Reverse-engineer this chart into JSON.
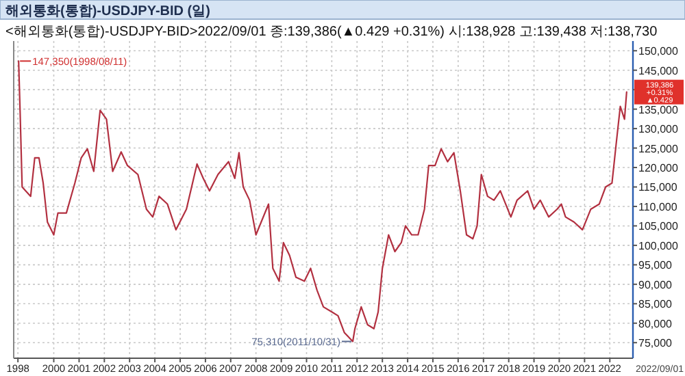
{
  "chart_data": {
    "type": "line",
    "title": "해외통화(통합)-USDJPY-BID (일)",
    "subtitle": "<해외통화(통합)-USDJPY-BID>2022/09/01 종:139,386(▲0.429 +0.31%) 시:138,928 고:139,438 저:138,730",
    "x": [
      "1998-08-11",
      "1998-09",
      "1998-10",
      "1999-02",
      "1999-04",
      "1999-06",
      "1999-08",
      "1999-10",
      "2000-01",
      "2000-03",
      "2000-07",
      "2000-11",
      "2001-02",
      "2001-05",
      "2001-08",
      "2001-11",
      "2002-02",
      "2002-05",
      "2002-09",
      "2002-12",
      "2003-05",
      "2003-09",
      "2003-12",
      "2004-03",
      "2004-07",
      "2004-11",
      "2005-04",
      "2005-09",
      "2005-12",
      "2006-03",
      "2006-07",
      "2006-12",
      "2007-03",
      "2007-05",
      "2007-07",
      "2007-10",
      "2008-01",
      "2008-07",
      "2008-09",
      "2008-12",
      "2009-02",
      "2009-05",
      "2009-08",
      "2009-12",
      "2010-03",
      "2010-06",
      "2010-09",
      "2011-01",
      "2011-04",
      "2011-07",
      "2011-10-31",
      "2011-12",
      "2012-03",
      "2012-06",
      "2012-09",
      "2012-11",
      "2013-01",
      "2013-04",
      "2013-07",
      "2013-10",
      "2013-12",
      "2014-03",
      "2014-06",
      "2014-09",
      "2014-11",
      "2015-02",
      "2015-05",
      "2015-08",
      "2015-11",
      "2016-02",
      "2016-05",
      "2016-08",
      "2016-10",
      "2016-12",
      "2017-03",
      "2017-06",
      "2017-09",
      "2018-02",
      "2018-05",
      "2018-10",
      "2019-01",
      "2019-04",
      "2019-08",
      "2019-12",
      "2020-02",
      "2020-04",
      "2020-08",
      "2020-12",
      "2021-04",
      "2021-08",
      "2021-11",
      "2022-02",
      "2022-04",
      "2022-06",
      "2022-08",
      "2022-09-01"
    ],
    "series": [
      {
        "color": "#b23040",
        "values": [
          147350,
          134700,
          115000,
          112600,
          122500,
          122500,
          116000,
          106000,
          102700,
          108300,
          108300,
          116000,
          122500,
          124800,
          119000,
          134700,
          132400,
          119000,
          124000,
          120500,
          118200,
          109300,
          107300,
          112600,
          110600,
          104000,
          109300,
          120900,
          117200,
          114000,
          118200,
          121500,
          117200,
          123800,
          115000,
          111600,
          102700,
          110600,
          94100,
          90800,
          100700,
          97400,
          91800,
          90800,
          94100,
          88500,
          84200,
          82900,
          81900,
          77600,
          75310,
          78600,
          84200,
          79600,
          78600,
          82900,
          94100,
          102700,
          98400,
          100700,
          105000,
          102700,
          102700,
          109300,
          120500,
          120500,
          124800,
          121500,
          123800,
          114000,
          102700,
          101700,
          105000,
          118200,
          112600,
          111600,
          114000,
          107300,
          111600,
          114000,
          109300,
          111600,
          107300,
          109300,
          110600,
          107300,
          106000,
          104000,
          109300,
          110600,
          115000,
          116000,
          125800,
          135700,
          132400,
          139400
        ]
      }
    ],
    "xlim": [
      "1998-06",
      "2022-12"
    ],
    "xticks": [
      {
        "value": "1998-08",
        "label": "1998"
      },
      {
        "value": "2000-01",
        "label": "2000"
      },
      {
        "value": "2001-01",
        "label": "2001"
      },
      {
        "value": "2002-01",
        "label": "2002"
      },
      {
        "value": "2003-01",
        "label": "2003"
      },
      {
        "value": "2004-01",
        "label": "2004"
      },
      {
        "value": "2005-01",
        "label": "2005"
      },
      {
        "value": "2006-01",
        "label": "2006"
      },
      {
        "value": "2007-01",
        "label": "2007"
      },
      {
        "value": "2008-01",
        "label": "2008"
      },
      {
        "value": "2009-01",
        "label": "2009"
      },
      {
        "value": "2010-01",
        "label": "2010"
      },
      {
        "value": "2011-01",
        "label": "2011"
      },
      {
        "value": "2012-01",
        "label": "2012"
      },
      {
        "value": "2013-01",
        "label": "2013"
      },
      {
        "value": "2014-01",
        "label": "2014"
      },
      {
        "value": "2015-01",
        "label": "2015"
      },
      {
        "value": "2016-01",
        "label": "2016"
      },
      {
        "value": "2017-01",
        "label": "2017"
      },
      {
        "value": "2018-01",
        "label": "2018"
      },
      {
        "value": "2019-01",
        "label": "2019"
      },
      {
        "value": "2020-01",
        "label": "2020"
      },
      {
        "value": "2021-01",
        "label": "2021"
      },
      {
        "value": "2022-01",
        "label": "2022"
      }
    ],
    "ylim": [
      71000,
      152500
    ],
    "yticks": [
      {
        "value": 75000,
        "label": "75,000"
      },
      {
        "value": 80000,
        "label": "80,000"
      },
      {
        "value": 85000,
        "label": "85,000"
      },
      {
        "value": 90000,
        "label": "90,000"
      },
      {
        "value": 95000,
        "label": "95,000"
      },
      {
        "value": 100000,
        "label": "100,000"
      },
      {
        "value": 105000,
        "label": "105,000"
      },
      {
        "value": 110000,
        "label": "110,000"
      },
      {
        "value": 115000,
        "label": "115,000"
      },
      {
        "value": 120000,
        "label": "120,000"
      },
      {
        "value": 125000,
        "label": "125,000"
      },
      {
        "value": 130000,
        "label": "130,000"
      },
      {
        "value": 135000,
        "label": "135,000"
      },
      {
        "value": 140000,
        "label": null
      },
      {
        "value": 145000,
        "label": "145,000"
      },
      {
        "value": 150000,
        "label": "150,000"
      }
    ],
    "grid": true,
    "annotations": [
      {
        "text": "147,350(1998/08/11)",
        "x": "1998-08-11",
        "y": 147350
      },
      {
        "text": "75,310(2011/10/31)",
        "x": "2011-10-31",
        "y": 75310
      },
      {
        "text": "139,386",
        "x": "2022-09-01",
        "y": 139386
      },
      "+0.31%",
      "▲0.429",
      "2022/09/01"
    ]
  }
}
